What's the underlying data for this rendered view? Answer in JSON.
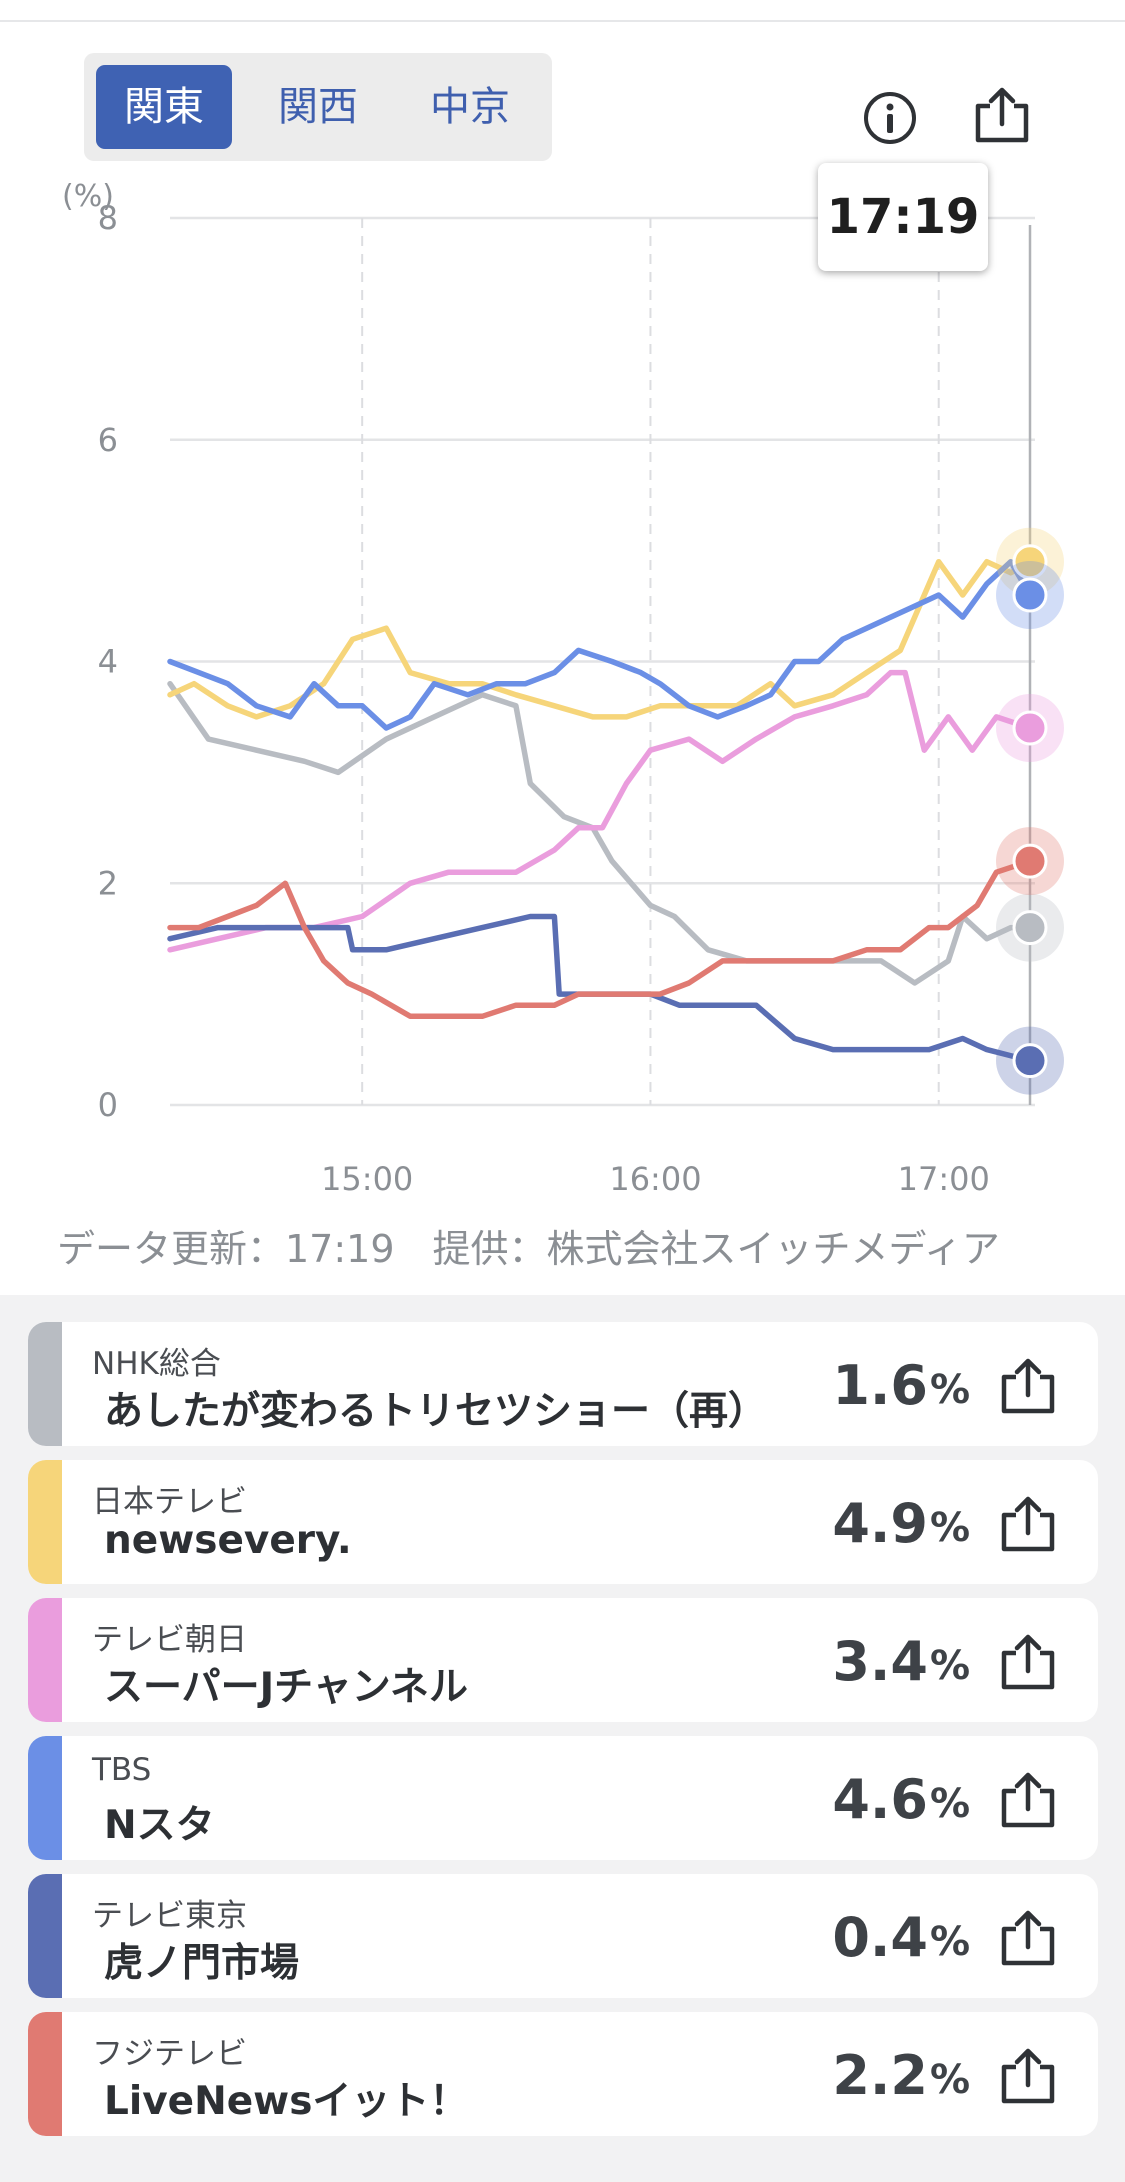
{
  "region_tabs": [
    {
      "label": "関東",
      "active": true
    },
    {
      "label": "関西",
      "active": false
    },
    {
      "label": "中京",
      "active": false
    }
  ],
  "icons": {
    "info": "info-icon",
    "share": "share-icon"
  },
  "tooltip_time": "17:19",
  "chart_data": {
    "type": "line",
    "ylabel": "(%)",
    "y_ticks": [
      "0",
      "2",
      "4",
      "6",
      "8"
    ],
    "ylim": [
      0,
      8
    ],
    "x_ticks": [
      "15:00",
      "16:00",
      "17:00"
    ],
    "x_tick_minutes": [
      900,
      960,
      1020
    ],
    "xlim_minutes": [
      860,
      1039
    ],
    "grid": true,
    "series": [
      {
        "name": "NHK総合",
        "color": "#b8bcc2",
        "points": [
          [
            860,
            3.8
          ],
          [
            868,
            3.3
          ],
          [
            878,
            3.2
          ],
          [
            888,
            3.1
          ],
          [
            895,
            3.0
          ],
          [
            905,
            3.3
          ],
          [
            915,
            3.5
          ],
          [
            925,
            3.7
          ],
          [
            932,
            3.6
          ],
          [
            935,
            2.9
          ],
          [
            942,
            2.6
          ],
          [
            948,
            2.5
          ],
          [
            952,
            2.2
          ],
          [
            960,
            1.8
          ],
          [
            965,
            1.7
          ],
          [
            972,
            1.4
          ],
          [
            980,
            1.3
          ],
          [
            990,
            1.3
          ],
          [
            1000,
            1.3
          ],
          [
            1008,
            1.3
          ],
          [
            1015,
            1.1
          ],
          [
            1022,
            1.3
          ],
          [
            1025,
            1.7
          ],
          [
            1030,
            1.5
          ],
          [
            1035,
            1.6
          ],
          [
            1039,
            1.6
          ]
        ]
      },
      {
        "name": "日本テレビ",
        "color": "#f6d57a",
        "points": [
          [
            860,
            3.7
          ],
          [
            865,
            3.8
          ],
          [
            872,
            3.6
          ],
          [
            878,
            3.5
          ],
          [
            885,
            3.6
          ],
          [
            892,
            3.8
          ],
          [
            898,
            4.2
          ],
          [
            905,
            4.3
          ],
          [
            910,
            3.9
          ],
          [
            918,
            3.8
          ],
          [
            925,
            3.8
          ],
          [
            932,
            3.7
          ],
          [
            940,
            3.6
          ],
          [
            948,
            3.5
          ],
          [
            955,
            3.5
          ],
          [
            962,
            3.6
          ],
          [
            970,
            3.6
          ],
          [
            978,
            3.6
          ],
          [
            985,
            3.8
          ],
          [
            990,
            3.6
          ],
          [
            998,
            3.7
          ],
          [
            1005,
            3.9
          ],
          [
            1012,
            4.1
          ],
          [
            1018,
            4.7
          ],
          [
            1020,
            4.9
          ],
          [
            1025,
            4.6
          ],
          [
            1030,
            4.9
          ],
          [
            1035,
            4.8
          ],
          [
            1039,
            4.9
          ]
        ]
      },
      {
        "name": "テレビ朝日",
        "color": "#ea9ddd",
        "points": [
          [
            860,
            1.4
          ],
          [
            870,
            1.5
          ],
          [
            880,
            1.6
          ],
          [
            890,
            1.6
          ],
          [
            900,
            1.7
          ],
          [
            910,
            2.0
          ],
          [
            918,
            2.1
          ],
          [
            925,
            2.1
          ],
          [
            932,
            2.1
          ],
          [
            940,
            2.3
          ],
          [
            945,
            2.5
          ],
          [
            950,
            2.5
          ],
          [
            955,
            2.9
          ],
          [
            960,
            3.2
          ],
          [
            968,
            3.3
          ],
          [
            975,
            3.1
          ],
          [
            982,
            3.3
          ],
          [
            990,
            3.5
          ],
          [
            998,
            3.6
          ],
          [
            1005,
            3.7
          ],
          [
            1010,
            3.9
          ],
          [
            1013,
            3.9
          ],
          [
            1017,
            3.2
          ],
          [
            1022,
            3.5
          ],
          [
            1027,
            3.2
          ],
          [
            1032,
            3.5
          ],
          [
            1039,
            3.4
          ]
        ]
      },
      {
        "name": "TBS",
        "color": "#6b8fe6",
        "points": [
          [
            860,
            4.0
          ],
          [
            866,
            3.9
          ],
          [
            872,
            3.8
          ],
          [
            878,
            3.6
          ],
          [
            885,
            3.5
          ],
          [
            890,
            3.8
          ],
          [
            895,
            3.6
          ],
          [
            900,
            3.6
          ],
          [
            905,
            3.4
          ],
          [
            910,
            3.5
          ],
          [
            915,
            3.8
          ],
          [
            922,
            3.7
          ],
          [
            928,
            3.8
          ],
          [
            934,
            3.8
          ],
          [
            940,
            3.9
          ],
          [
            945,
            4.1
          ],
          [
            952,
            4.0
          ],
          [
            958,
            3.9
          ],
          [
            962,
            3.8
          ],
          [
            968,
            3.6
          ],
          [
            974,
            3.5
          ],
          [
            980,
            3.6
          ],
          [
            985,
            3.7
          ],
          [
            990,
            4.0
          ],
          [
            995,
            4.0
          ],
          [
            1000,
            4.2
          ],
          [
            1005,
            4.3
          ],
          [
            1010,
            4.4
          ],
          [
            1015,
            4.5
          ],
          [
            1020,
            4.6
          ],
          [
            1025,
            4.4
          ],
          [
            1030,
            4.7
          ],
          [
            1035,
            4.9
          ],
          [
            1039,
            4.6
          ]
        ]
      },
      {
        "name": "テレビ東京",
        "color": "#5a6eb3",
        "points": [
          [
            860,
            1.5
          ],
          [
            870,
            1.6
          ],
          [
            880,
            1.6
          ],
          [
            890,
            1.6
          ],
          [
            897,
            1.6
          ],
          [
            898,
            1.4
          ],
          [
            905,
            1.4
          ],
          [
            915,
            1.5
          ],
          [
            925,
            1.6
          ],
          [
            935,
            1.7
          ],
          [
            940,
            1.7
          ],
          [
            941,
            1.0
          ],
          [
            946,
            1.0
          ],
          [
            952,
            1.0
          ],
          [
            960,
            1.0
          ],
          [
            966,
            0.9
          ],
          [
            975,
            0.9
          ],
          [
            982,
            0.9
          ],
          [
            990,
            0.6
          ],
          [
            998,
            0.5
          ],
          [
            1008,
            0.5
          ],
          [
            1018,
            0.5
          ],
          [
            1025,
            0.6
          ],
          [
            1030,
            0.5
          ],
          [
            1039,
            0.4
          ]
        ]
      },
      {
        "name": "フジテレビ",
        "color": "#e07a72",
        "points": [
          [
            860,
            1.6
          ],
          [
            866,
            1.6
          ],
          [
            872,
            1.7
          ],
          [
            878,
            1.8
          ],
          [
            884,
            2.0
          ],
          [
            888,
            1.6
          ],
          [
            892,
            1.3
          ],
          [
            897,
            1.1
          ],
          [
            902,
            1.0
          ],
          [
            910,
            0.8
          ],
          [
            918,
            0.8
          ],
          [
            925,
            0.8
          ],
          [
            932,
            0.9
          ],
          [
            940,
            0.9
          ],
          [
            945,
            1.0
          ],
          [
            950,
            1.0
          ],
          [
            957,
            1.0
          ],
          [
            962,
            1.0
          ],
          [
            968,
            1.1
          ],
          [
            975,
            1.3
          ],
          [
            982,
            1.3
          ],
          [
            990,
            1.3
          ],
          [
            998,
            1.3
          ],
          [
            1005,
            1.4
          ],
          [
            1012,
            1.4
          ],
          [
            1018,
            1.6
          ],
          [
            1022,
            1.6
          ],
          [
            1028,
            1.8
          ],
          [
            1032,
            2.1
          ],
          [
            1039,
            2.2
          ]
        ]
      }
    ]
  },
  "source_text": "データ更新：17:19　提供：株式会社スイッチメディア",
  "ratings": [
    {
      "channel": "NHK総合",
      "program": "あしたが変わるトリセツショー（再）",
      "value": "1.6",
      "unit": "%",
      "color": "#b8bcc2"
    },
    {
      "channel": "日本テレビ",
      "program": "newsevery.",
      "value": "4.9",
      "unit": "%",
      "color": "#f6d57a"
    },
    {
      "channel": "テレビ朝日",
      "program": "スーパーJチャンネル",
      "value": "3.4",
      "unit": "%",
      "color": "#ea9ddd"
    },
    {
      "channel": "TBS",
      "program": "Nスタ",
      "value": "4.6",
      "unit": "%",
      "color": "#6b8fe6"
    },
    {
      "channel": "テレビ東京",
      "program": "虎ノ門市場",
      "value": "0.4",
      "unit": "%",
      "color": "#5a6eb3"
    },
    {
      "channel": "フジテレビ",
      "program": "LiveNewsイット！",
      "value": "2.2",
      "unit": "%",
      "color": "#e07a72"
    }
  ]
}
